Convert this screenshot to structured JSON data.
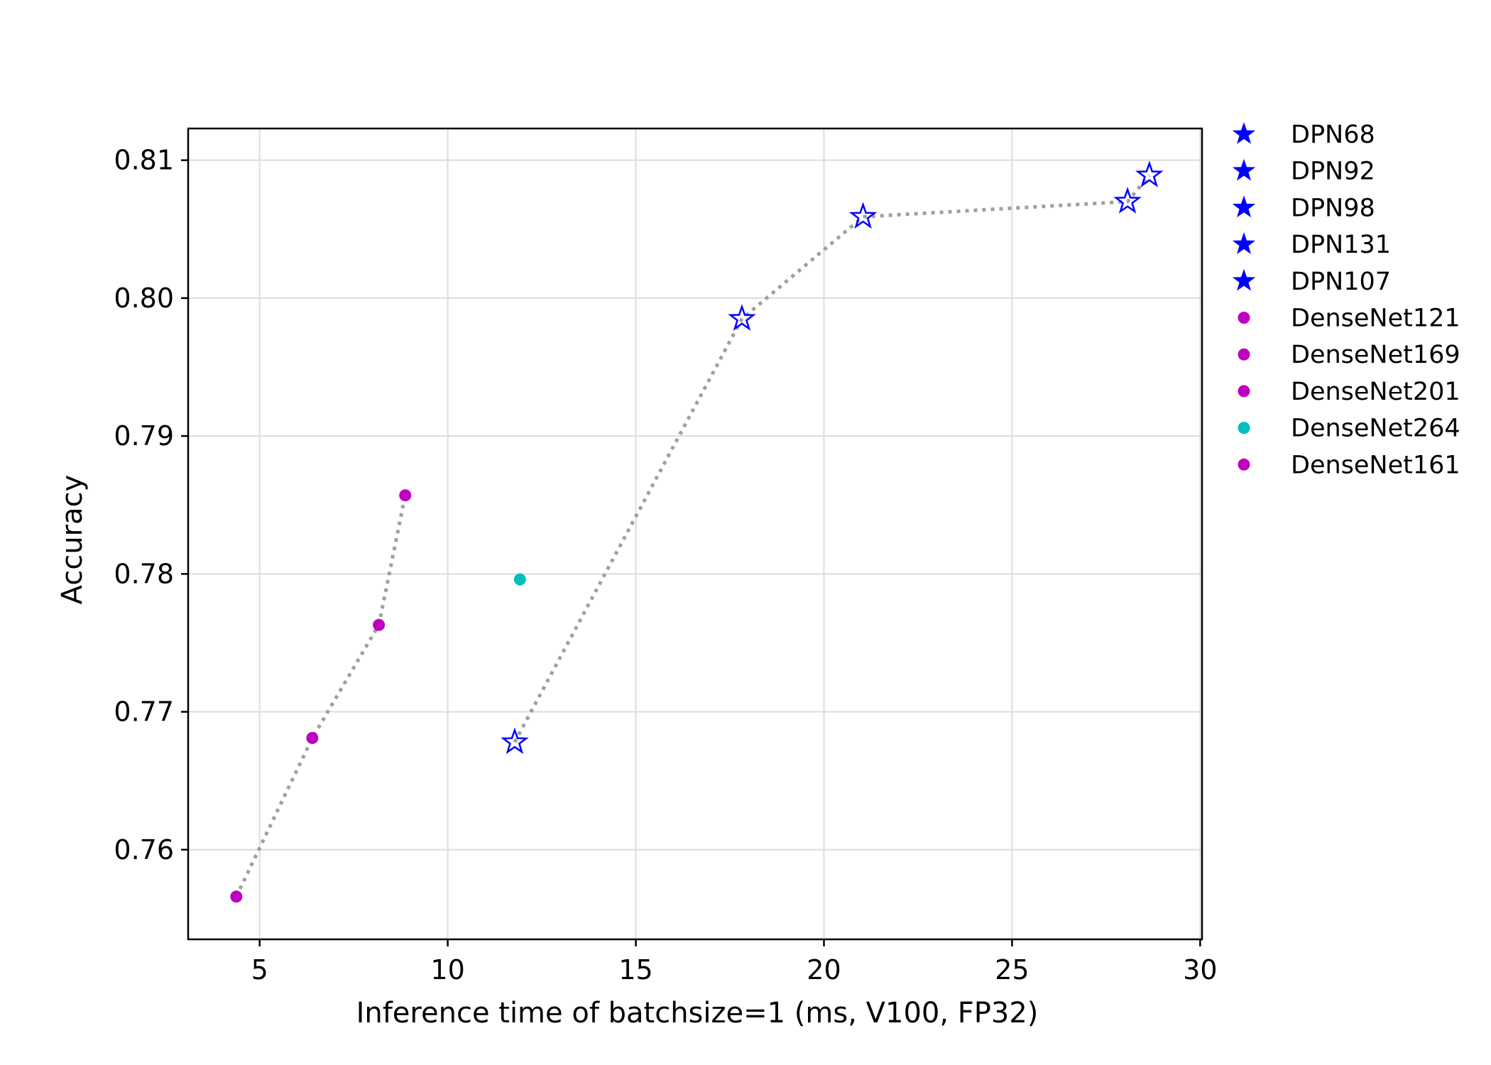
{
  "chart_data": {
    "type": "scatter",
    "xlabel": "Inference time of batchsize=1 (ms, V100, FP32)",
    "ylabel": "Accuracy",
    "xlim": [
      3.1,
      30.05
    ],
    "ylim": [
      0.7535,
      0.8123
    ],
    "x_ticks": [
      5,
      10,
      15,
      20,
      25,
      30
    ],
    "x_tick_labels": [
      "5",
      "10",
      "15",
      "20",
      "25",
      "30"
    ],
    "y_ticks": [
      0.76,
      0.77,
      0.78,
      0.79,
      0.8,
      0.81
    ],
    "y_tick_labels": [
      "0.76",
      "0.77",
      "0.78",
      "0.79",
      "0.80",
      "0.81"
    ],
    "grid": true,
    "legend_position": "outside-right",
    "colors": {
      "dpn": "#0000ff",
      "densenet": "#bf00bf",
      "densenet264": "#00bfbf",
      "trend_line": "#a0a0a0",
      "grid": "#dcdcdc"
    },
    "series": [
      {
        "name": "DPN68",
        "marker": "star",
        "color": "#0000ff",
        "x": 11.78,
        "y": 0.7678
      },
      {
        "name": "DPN92",
        "marker": "star",
        "color": "#0000ff",
        "x": 17.82,
        "y": 0.7985
      },
      {
        "name": "DPN98",
        "marker": "star",
        "color": "#0000ff",
        "x": 21.04,
        "y": 0.8059
      },
      {
        "name": "DPN131",
        "marker": "star",
        "color": "#0000ff",
        "x": 28.07,
        "y": 0.807
      },
      {
        "name": "DPN107",
        "marker": "star",
        "color": "#0000ff",
        "x": 28.65,
        "y": 0.8089
      },
      {
        "name": "DenseNet121",
        "marker": "circle",
        "color": "#bf00bf",
        "x": 4.38,
        "y": 0.7566
      },
      {
        "name": "DenseNet169",
        "marker": "circle",
        "color": "#bf00bf",
        "x": 6.4,
        "y": 0.7681
      },
      {
        "name": "DenseNet201",
        "marker": "circle",
        "color": "#bf00bf",
        "x": 8.17,
        "y": 0.7763
      },
      {
        "name": "DenseNet264",
        "marker": "circle",
        "color": "#00bfbf",
        "x": 11.92,
        "y": 0.7796
      },
      {
        "name": "DenseNet161",
        "marker": "circle",
        "color": "#bf00bf",
        "x": 8.87,
        "y": 0.7857
      }
    ],
    "trend_lines": [
      {
        "series": [
          "DenseNet121",
          "DenseNet169",
          "DenseNet201",
          "DenseNet161"
        ]
      },
      {
        "series": [
          "DPN68",
          "DPN92",
          "DPN98",
          "DPN131",
          "DPN107"
        ]
      }
    ]
  }
}
